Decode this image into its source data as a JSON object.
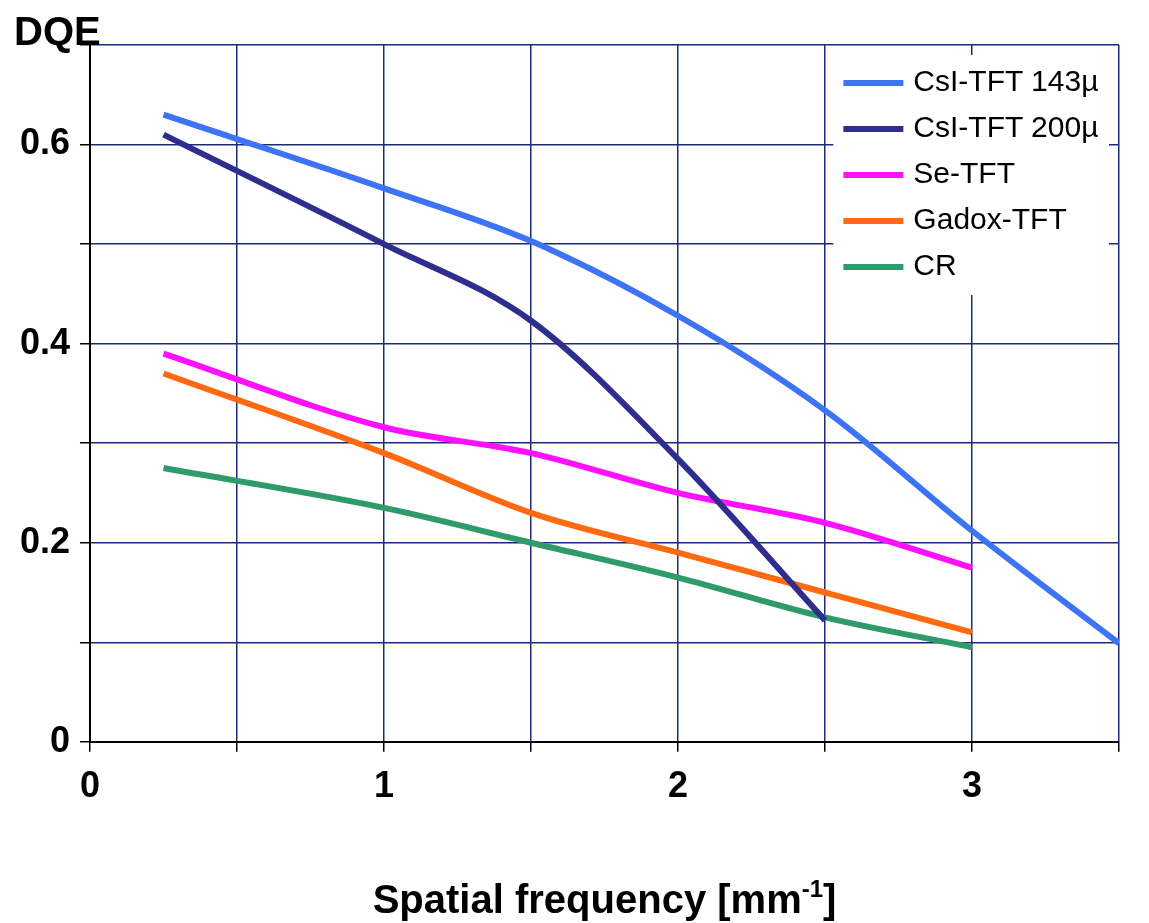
{
  "chart_data": {
    "type": "line",
    "xlabel": "Spatial frequency [mm$^{-1}$]",
    "ylabel": "DQE",
    "xlim": [
      0,
      3.5
    ],
    "xticks": [
      0,
      {
        "value": 0.5,
        "label": null
      },
      1,
      {
        "value": 1.5,
        "label": null
      },
      2,
      {
        "value": 2.5,
        "label": null
      },
      3,
      {
        "value": 3.5,
        "label": null
      }
    ],
    "ylim": [
      0,
      0.7
    ],
    "yticks": [
      0,
      {
        "value": 0.1,
        "label": null
      },
      0.2,
      {
        "value": 0.3,
        "label": null
      },
      0.4,
      {
        "value": 0.5,
        "label": null
      },
      0.6,
      {
        "value": 0.7,
        "label": null
      }
    ],
    "grid": true,
    "legend": "top right",
    "marker": "none",
    "line_style": "solid",
    "series": [
      {
        "name": "CsI-TFT 143µ",
        "color": "#3d73f5",
        "x": [
          0.25,
          1,
          1.5,
          2,
          2.5,
          3,
          3.5
        ],
        "values": [
          0.63,
          0.556,
          0.503,
          0.428,
          0.333,
          0.212,
          0.099
        ]
      },
      {
        "name": "CsI-TFT 200µ",
        "color": "#2e2e8f",
        "x": [
          0.25,
          1,
          1.5,
          2,
          2.5
        ],
        "values": [
          0.61,
          0.5,
          0.423,
          0.284,
          0.122
        ]
      },
      {
        "name": "Se-TFT",
        "color": "#ff10ff",
        "x": [
          0.25,
          1,
          1.5,
          2,
          2.5,
          3
        ],
        "values": [
          0.39,
          0.316,
          0.29,
          0.25,
          0.22,
          0.175
        ]
      },
      {
        "name": "Gadox-TFT",
        "color": "#ff6a10",
        "x": [
          0.25,
          1,
          1.5,
          2,
          2.5,
          3
        ],
        "values": [
          0.37,
          0.29,
          0.23,
          0.19,
          0.15,
          0.11
        ]
      },
      {
        "name": "CR",
        "color": "#2f9a6a",
        "x": [
          0.25,
          1,
          1.5,
          2,
          2.5,
          3
        ],
        "values": [
          0.275,
          0.235,
          0.2,
          0.165,
          0.125,
          0.095
        ]
      }
    ]
  }
}
